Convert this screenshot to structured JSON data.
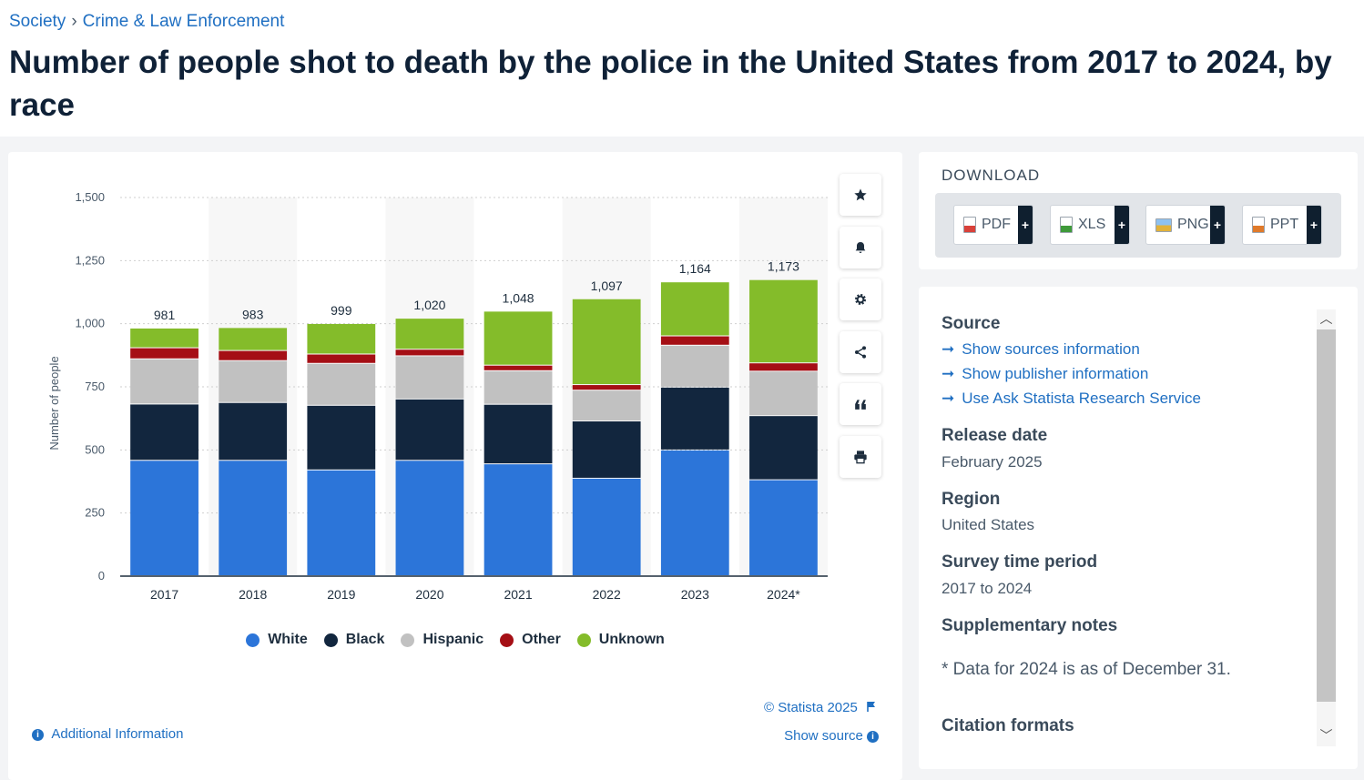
{
  "breadcrumb": {
    "level1": "Society",
    "separator": "›",
    "level2": "Crime & Law Enforcement"
  },
  "title": "Number of people shot to death by the police in the United States from 2017 to 2024, by race",
  "chart_data": {
    "type": "bar",
    "stacked": true,
    "categories": [
      "2017",
      "2018",
      "2019",
      "2020",
      "2021",
      "2022",
      "2023",
      "2024*"
    ],
    "series": [
      {
        "name": "White",
        "color": "#2c75d9",
        "values": [
          457,
          457,
          419,
          457,
          443,
          386,
          498,
          380
        ]
      },
      {
        "name": "Black",
        "color": "#12263e",
        "values": [
          223,
          229,
          256,
          243,
          236,
          227,
          249,
          254
        ]
      },
      {
        "name": "Hispanic",
        "color": "#c1c1c1",
        "values": [
          179,
          166,
          166,
          171,
          133,
          122,
          166,
          176
        ]
      },
      {
        "name": "Other",
        "color": "#a50f15",
        "values": [
          44,
          40,
          37,
          26,
          22,
          22,
          37,
          33
        ]
      },
      {
        "name": "Unknown",
        "color": "#84bc2a",
        "values": [
          78,
          91,
          121,
          123,
          214,
          340,
          214,
          330
        ]
      }
    ],
    "totals": [
      "981",
      "983",
      "999",
      "1,020",
      "1,048",
      "1,097",
      "1,164",
      "1,173"
    ],
    "ylabel": "Number of people",
    "ylim": [
      0,
      1500
    ],
    "yticks": [
      0,
      250,
      500,
      750,
      1000,
      1250,
      1500
    ],
    "ytick_labels": [
      "0",
      "250",
      "500",
      "750",
      "1,000",
      "1,250",
      "1,500"
    ],
    "grid": true,
    "legend_position": "bottom"
  },
  "footer": {
    "copyright": "© Statista 2025",
    "show_source": "Show source",
    "additional_info": "Additional Information"
  },
  "toolbar": {
    "icons": [
      "star-icon",
      "bell-icon",
      "gear-icon",
      "share-icon",
      "quote-icon",
      "print-icon"
    ]
  },
  "download": {
    "title": "DOWNLOAD",
    "buttons": [
      {
        "label": "PDF",
        "color": "#d9413a"
      },
      {
        "label": "XLS",
        "color": "#3f9a3a"
      },
      {
        "label": "PNG",
        "color": "#3a6fc2"
      },
      {
        "label": "PPT",
        "color": "#e07a2a"
      }
    ],
    "plus": "+"
  },
  "info": {
    "source_heading": "Source",
    "links": [
      "Show sources information",
      "Show publisher information",
      "Use Ask Statista Research Service"
    ],
    "release_heading": "Release date",
    "release_value": "February 2025",
    "region_heading": "Region",
    "region_value": "United States",
    "period_heading": "Survey time period",
    "period_value": "2017 to 2024",
    "notes_heading": "Supplementary notes",
    "notes_value": "* Data for 2024 is as of December 31.",
    "citation_heading": "Citation formats"
  }
}
